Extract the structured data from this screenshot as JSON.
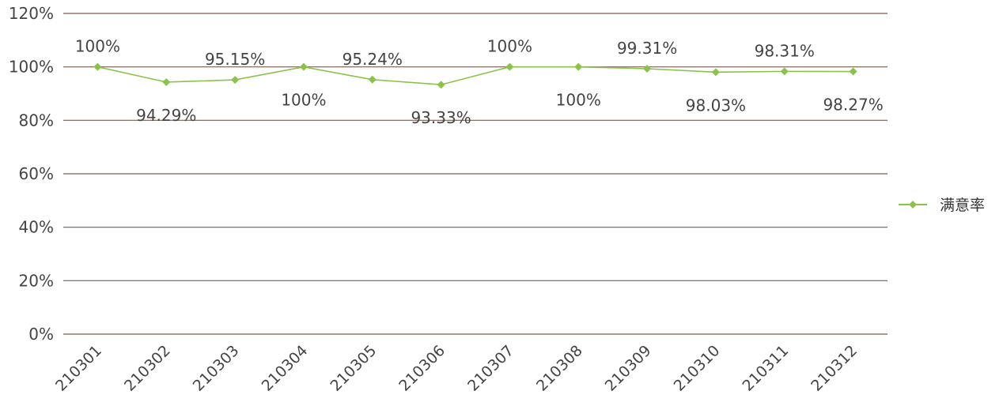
{
  "chart_data": {
    "type": "line",
    "categories": [
      "210301",
      "210302",
      "210303",
      "210304",
      "210305",
      "210306",
      "210307",
      "210308",
      "210309",
      "210310",
      "210311",
      "210312"
    ],
    "series": [
      {
        "name": "满意率",
        "values": [
          100,
          94.29,
          95.15,
          100,
          95.24,
          93.33,
          100,
          100,
          99.31,
          98.03,
          98.31,
          98.27
        ],
        "labels": [
          "100%",
          "94.29%",
          "95.15%",
          "100%",
          "95.24%",
          "93.33%",
          "100%",
          "100%",
          "99.31%",
          "98.03%",
          "98.31%",
          "98.27%"
        ],
        "label_positions": [
          "above",
          "below",
          "above",
          "below",
          "above",
          "below",
          "above",
          "below",
          "above",
          "below",
          "above",
          "below"
        ],
        "color": "#8bc34a"
      }
    ],
    "ylim": [
      0,
      120
    ],
    "yticks": [
      "0%",
      "20%",
      "40%",
      "60%",
      "80%",
      "100%",
      "120%"
    ],
    "grid": true,
    "legend_position": "right"
  }
}
